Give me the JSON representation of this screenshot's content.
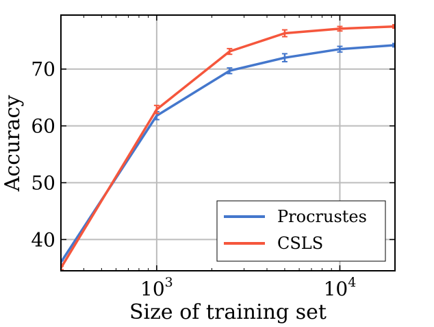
{
  "chart_data": {
    "type": "line",
    "xlabel": "Size of training set",
    "ylabel": "Accuracy",
    "xscale": "log",
    "xlim": [
      300,
      20000
    ],
    "ylim": [
      34.5,
      79.5
    ],
    "grid": true,
    "legend_position": "bottom-right",
    "x_ticks": [
      {
        "value": 1000,
        "base": "10",
        "exp": "3"
      },
      {
        "value": 10000,
        "base": "10",
        "exp": "4"
      }
    ],
    "y_ticks": [
      {
        "value": 40,
        "label": "40"
      },
      {
        "value": 50,
        "label": "50"
      },
      {
        "value": 60,
        "label": "60"
      },
      {
        "value": 70,
        "label": "70"
      }
    ],
    "x": [
      300,
      1000,
      2500,
      5000,
      10000,
      20000
    ],
    "series": [
      {
        "name": "Procrustes",
        "color": "#4477CC",
        "values": [
          36.0,
          61.8,
          69.7,
          72.0,
          73.5,
          74.2
        ],
        "errors": [
          0.3,
          0.7,
          0.5,
          0.7,
          0.5,
          0.3
        ]
      },
      {
        "name": "CSLS",
        "color": "#F5563C",
        "values": [
          35.0,
          62.9,
          73.1,
          76.3,
          77.1,
          77.5
        ],
        "errors": [
          0.3,
          0.7,
          0.5,
          0.6,
          0.4,
          0.3
        ]
      }
    ]
  }
}
